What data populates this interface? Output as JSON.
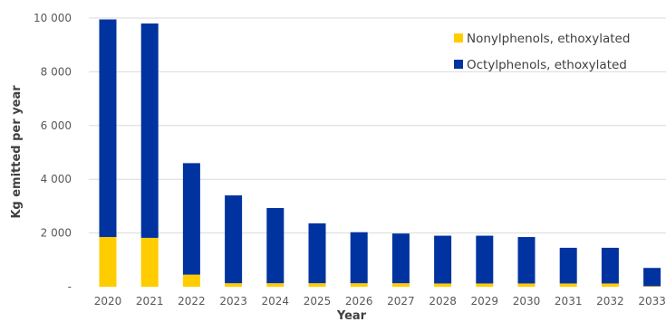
{
  "chart_data": {
    "type": "bar",
    "stacked": true,
    "title": "",
    "xlabel": "Year",
    "ylabel": "Kg emitted per year",
    "categories": [
      "2020",
      "2021",
      "2022",
      "2023",
      "2024",
      "2025",
      "2026",
      "2027",
      "2028",
      "2029",
      "2030",
      "2031",
      "2032",
      "2033"
    ],
    "ylim": [
      0,
      10000
    ],
    "yticks": [
      0,
      2000,
      4000,
      6000,
      8000,
      10000
    ],
    "ytick_labels": [
      "-",
      "2 000",
      "4 000",
      "6 000",
      "8 000",
      "10 000"
    ],
    "grid": true,
    "legend_position": "top-right",
    "series": [
      {
        "name": "Nonylphenols, ethoxylated",
        "color": "#ffcc00",
        "values": [
          1850,
          1820,
          450,
          130,
          130,
          130,
          130,
          130,
          120,
          120,
          120,
          120,
          120,
          20
        ]
      },
      {
        "name": "Octylphenols, ethoxylated",
        "color": "#0033a0",
        "values": [
          8100,
          7980,
          4150,
          3270,
          2800,
          2230,
          1900,
          1850,
          1780,
          1780,
          1730,
          1330,
          1330,
          680
        ]
      }
    ]
  }
}
